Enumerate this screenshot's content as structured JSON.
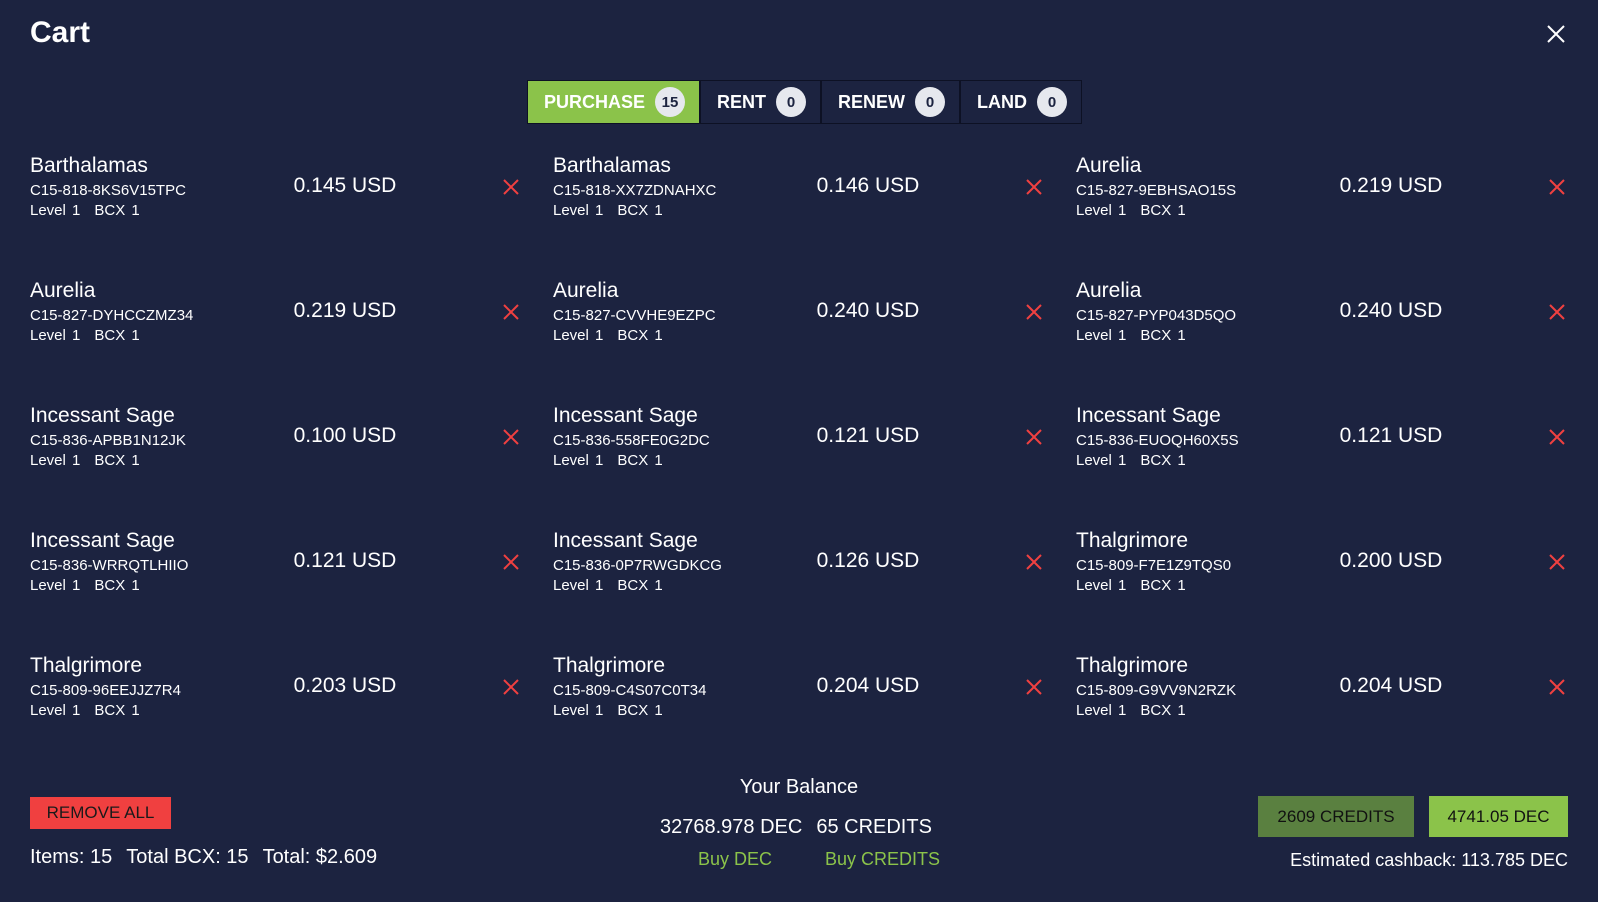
{
  "title": "Cart",
  "close_icon": "close-icon",
  "tabs": [
    {
      "label": "PURCHASE",
      "count": "15",
      "active": true
    },
    {
      "label": "RENT",
      "count": "0"
    },
    {
      "label": "RENEW",
      "count": "0"
    },
    {
      "label": "LAND",
      "count": "0"
    }
  ],
  "colors": {
    "accent": "#8bc34a",
    "danger": "#f04040",
    "background": "#1c2340",
    "credits_button": "#5a8040"
  },
  "items": [
    {
      "name": "Barthalamas",
      "id": "C15-818-8KS6V15TPC",
      "level": "Level 1",
      "bcx": "BCX 1",
      "price": "0.145 USD"
    },
    {
      "name": "Barthalamas",
      "id": "C15-818-XX7ZDNAHXC",
      "level": "Level 1",
      "bcx": "BCX 1",
      "price": "0.146 USD"
    },
    {
      "name": "Aurelia",
      "id": "C15-827-9EBHSAO15S",
      "level": "Level 1",
      "bcx": "BCX 1",
      "price": "0.219 USD"
    },
    {
      "name": "Aurelia",
      "id": "C15-827-DYHCCZMZ34",
      "level": "Level 1",
      "bcx": "BCX 1",
      "price": "0.219 USD"
    },
    {
      "name": "Aurelia",
      "id": "C15-827-CVVHE9EZPC",
      "level": "Level 1",
      "bcx": "BCX 1",
      "price": "0.240 USD"
    },
    {
      "name": "Aurelia",
      "id": "C15-827-PYP043D5QO",
      "level": "Level 1",
      "bcx": "BCX 1",
      "price": "0.240 USD"
    },
    {
      "name": "Incessant Sage",
      "id": "C15-836-APBB1N12JK",
      "level": "Level 1",
      "bcx": "BCX 1",
      "price": "0.100 USD"
    },
    {
      "name": "Incessant Sage",
      "id": "C15-836-558FE0G2DC",
      "level": "Level 1",
      "bcx": "BCX 1",
      "price": "0.121 USD"
    },
    {
      "name": "Incessant Sage",
      "id": "C15-836-EUOQH60X5S",
      "level": "Level 1",
      "bcx": "BCX 1",
      "price": "0.121 USD"
    },
    {
      "name": "Incessant Sage",
      "id": "C15-836-WRRQTLHIIO",
      "level": "Level 1",
      "bcx": "BCX 1",
      "price": "0.121 USD"
    },
    {
      "name": "Incessant Sage",
      "id": "C15-836-0P7RWGDKCG",
      "level": "Level 1",
      "bcx": "BCX 1",
      "price": "0.126 USD"
    },
    {
      "name": "Thalgrimore",
      "id": "C15-809-F7E1Z9TQS0",
      "level": "Level 1",
      "bcx": "BCX 1",
      "price": "0.200 USD"
    },
    {
      "name": "Thalgrimore",
      "id": "C15-809-96EEJJZ7R4",
      "level": "Level 1",
      "bcx": "BCX 1",
      "price": "0.203 USD"
    },
    {
      "name": "Thalgrimore",
      "id": "C15-809-C4S07C0T34",
      "level": "Level 1",
      "bcx": "BCX 1",
      "price": "0.204 USD"
    },
    {
      "name": "Thalgrimore",
      "id": "C15-809-G9VV9N2RZK",
      "level": "Level 1",
      "bcx": "BCX 1",
      "price": "0.204 USD"
    }
  ],
  "footer": {
    "remove_all": "REMOVE ALL",
    "items": "Items: 15",
    "total_bcx": "Total BCX: 15",
    "total": "Total: $2.609",
    "balance_title": "Your Balance",
    "dec_balance": "32768.978 DEC",
    "credits_balance": "65 CREDITS",
    "buy_dec": "Buy DEC",
    "buy_credits": "Buy CREDITS",
    "pay_credits": "2609 CREDITS",
    "pay_dec": "4741.05 DEC",
    "cashback": "Estimated cashback: 113.785 DEC"
  }
}
